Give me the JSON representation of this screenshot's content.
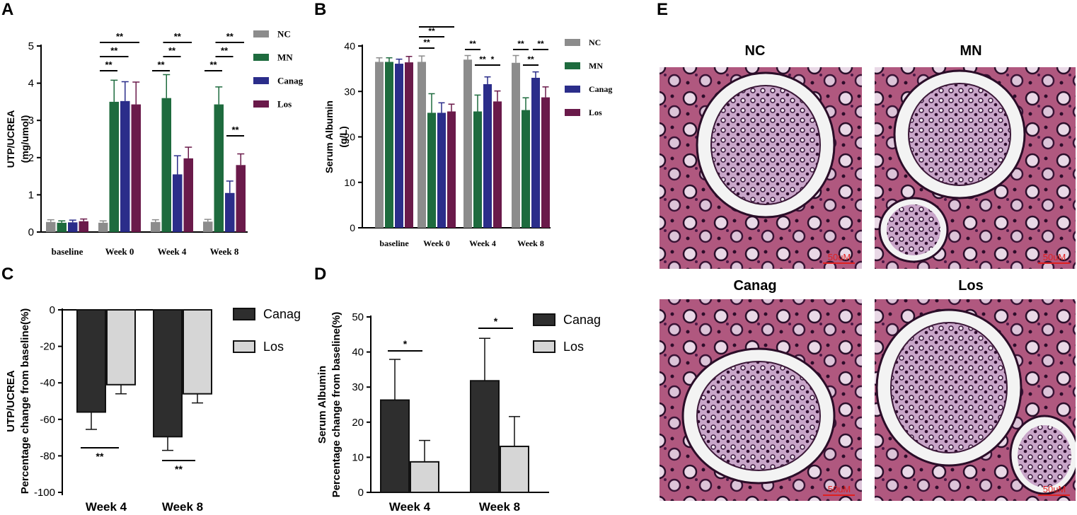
{
  "panels": {
    "A": "A",
    "B": "B",
    "C": "C",
    "D": "D",
    "E": "E"
  },
  "colors": {
    "NC": "#8c8c8c",
    "MN": "#1e6b3e",
    "Canag": "#2b2d8a",
    "Los": "#6a1a4a",
    "Canag_dark": "#2e2e2e",
    "Los_light": "#d6d6d6"
  },
  "chart_data": [
    {
      "id": "A",
      "type": "bar",
      "ylabel": "UTP/UCREA\n(mg/umol)",
      "ylim": [
        0,
        5
      ],
      "yticks": [
        0,
        1,
        2,
        3,
        4,
        5
      ],
      "categories": [
        "baseline",
        "Week 0",
        "Week 4",
        "Week 8"
      ],
      "series": [
        {
          "name": "NC",
          "values": [
            0.27,
            0.25,
            0.27,
            0.28
          ],
          "errors": [
            0.06,
            0.05,
            0.06,
            0.06
          ]
        },
        {
          "name": "MN",
          "values": [
            0.25,
            3.5,
            3.6,
            3.43
          ],
          "errors": [
            0.05,
            0.58,
            0.63,
            0.47
          ]
        },
        {
          "name": "Canag",
          "values": [
            0.26,
            3.52,
            1.55,
            1.05
          ],
          "errors": [
            0.06,
            0.52,
            0.5,
            0.32
          ]
        },
        {
          "name": "Los",
          "values": [
            0.29,
            3.43,
            1.98,
            1.8
          ],
          "errors": [
            0.06,
            0.6,
            0.3,
            0.3
          ]
        }
      ],
      "legend_position": "top-right",
      "annotations": [
        {
          "category": 1,
          "from": 0,
          "to": 1,
          "level": 0,
          "label": "**"
        },
        {
          "category": 1,
          "from": 0,
          "to": 2,
          "level": 1,
          "label": "**"
        },
        {
          "category": 1,
          "from": 0,
          "to": 3,
          "level": 2,
          "label": "**"
        },
        {
          "category": 2,
          "from": 0,
          "to": 1,
          "level": 0,
          "label": "**"
        },
        {
          "category": 2,
          "from": 1,
          "to": 2,
          "level": 1,
          "label": "**"
        },
        {
          "category": 2,
          "from": 1,
          "to": 3,
          "level": 2,
          "label": "**"
        },
        {
          "category": 3,
          "from": 0,
          "to": 1,
          "level": 0,
          "label": "**"
        },
        {
          "category": 3,
          "from": 1,
          "to": 2,
          "level": 1,
          "label": "**"
        },
        {
          "category": 3,
          "from": 1,
          "to": 3,
          "level": 2,
          "label": "**"
        },
        {
          "category": 3,
          "from": 2,
          "to": 3,
          "level": -1,
          "label": "**"
        }
      ]
    },
    {
      "id": "B",
      "type": "bar",
      "ylabel": "Serum Albumin\n(g/L)",
      "ylim": [
        0,
        40
      ],
      "yticks": [
        0,
        10,
        20,
        30,
        40
      ],
      "categories": [
        "baseline",
        "Week 0",
        "Week 4",
        "Week 8"
      ],
      "series": [
        {
          "name": "NC",
          "values": [
            36.5,
            36.5,
            37.0,
            36.3
          ],
          "errors": [
            0.9,
            1.3,
            0.9,
            1.6
          ]
        },
        {
          "name": "MN",
          "values": [
            36.5,
            25.3,
            25.6,
            25.9
          ],
          "errors": [
            0.9,
            4.2,
            3.6,
            2.7
          ]
        },
        {
          "name": "Canag",
          "values": [
            36.1,
            25.3,
            31.6,
            33.0
          ],
          "errors": [
            1.0,
            2.2,
            1.6,
            1.3
          ]
        },
        {
          "name": "Los",
          "values": [
            36.4,
            25.6,
            27.8,
            28.7
          ],
          "errors": [
            1.3,
            1.6,
            2.3,
            2.3
          ]
        }
      ],
      "legend_position": "top-right",
      "annotations": [
        {
          "category": 1,
          "from": 0,
          "to": 1,
          "level": 0,
          "label": "**"
        },
        {
          "category": 1,
          "from": 0,
          "to": 2,
          "level": 1,
          "label": "**"
        },
        {
          "category": 1,
          "from": 0,
          "to": 3,
          "level": 2,
          "label": "**"
        },
        {
          "category": 2,
          "from": 0,
          "to": 1,
          "level": 1,
          "label": "**"
        },
        {
          "category": 2,
          "from": 1,
          "to": 2,
          "level": 0,
          "label": "**"
        },
        {
          "category": 2,
          "from": 2,
          "to": 3,
          "level": 0,
          "label": "*"
        },
        {
          "category": 3,
          "from": 0,
          "to": 1,
          "level": 1,
          "label": "**"
        },
        {
          "category": 3,
          "from": 1,
          "to": 2,
          "level": 0,
          "label": "**"
        },
        {
          "category": 3,
          "from": 2,
          "to": 3,
          "level": 1,
          "label": "**"
        }
      ]
    },
    {
      "id": "C",
      "type": "bar",
      "ylabel": "UTP/UCREA\nPercentage change from baseline(%)",
      "ylim": [
        -100,
        0
      ],
      "yticks": [
        0,
        -20,
        -40,
        -60,
        -80,
        -100
      ],
      "categories": [
        "Week 4",
        "Week 8"
      ],
      "series": [
        {
          "name": "Canag",
          "values": [
            -56,
            -69.5
          ],
          "errors": [
            9.5,
            7.5
          ]
        },
        {
          "name": "Los",
          "values": [
            -41,
            -46
          ],
          "errors": [
            5,
            5
          ]
        }
      ],
      "legend_position": "top-right",
      "annotations": [
        {
          "category": 0,
          "label": "**"
        },
        {
          "category": 1,
          "label": "**"
        }
      ]
    },
    {
      "id": "D",
      "type": "bar",
      "ylabel": "Serum Albumin\nPercentage change from baseline(%)",
      "ylim": [
        0,
        50
      ],
      "yticks": [
        0,
        10,
        20,
        30,
        40,
        50
      ],
      "categories": [
        "Week 4",
        "Week 8"
      ],
      "series": [
        {
          "name": "Canag",
          "values": [
            26.3,
            31.8
          ],
          "errors": [
            11.6,
            12.1
          ]
        },
        {
          "name": "Los",
          "values": [
            8.7,
            13.1
          ],
          "errors": [
            6.1,
            8.5
          ]
        }
      ],
      "legend_position": "top-right",
      "annotations": [
        {
          "category": 0,
          "label": "*"
        },
        {
          "category": 1,
          "label": "*"
        }
      ]
    }
  ],
  "histology": {
    "images": [
      {
        "title": "NC",
        "scale": "50uM"
      },
      {
        "title": "MN",
        "scale": "50uM"
      },
      {
        "title": "Canag",
        "scale": "50uM"
      },
      {
        "title": "Los",
        "scale": "50uM"
      }
    ]
  }
}
